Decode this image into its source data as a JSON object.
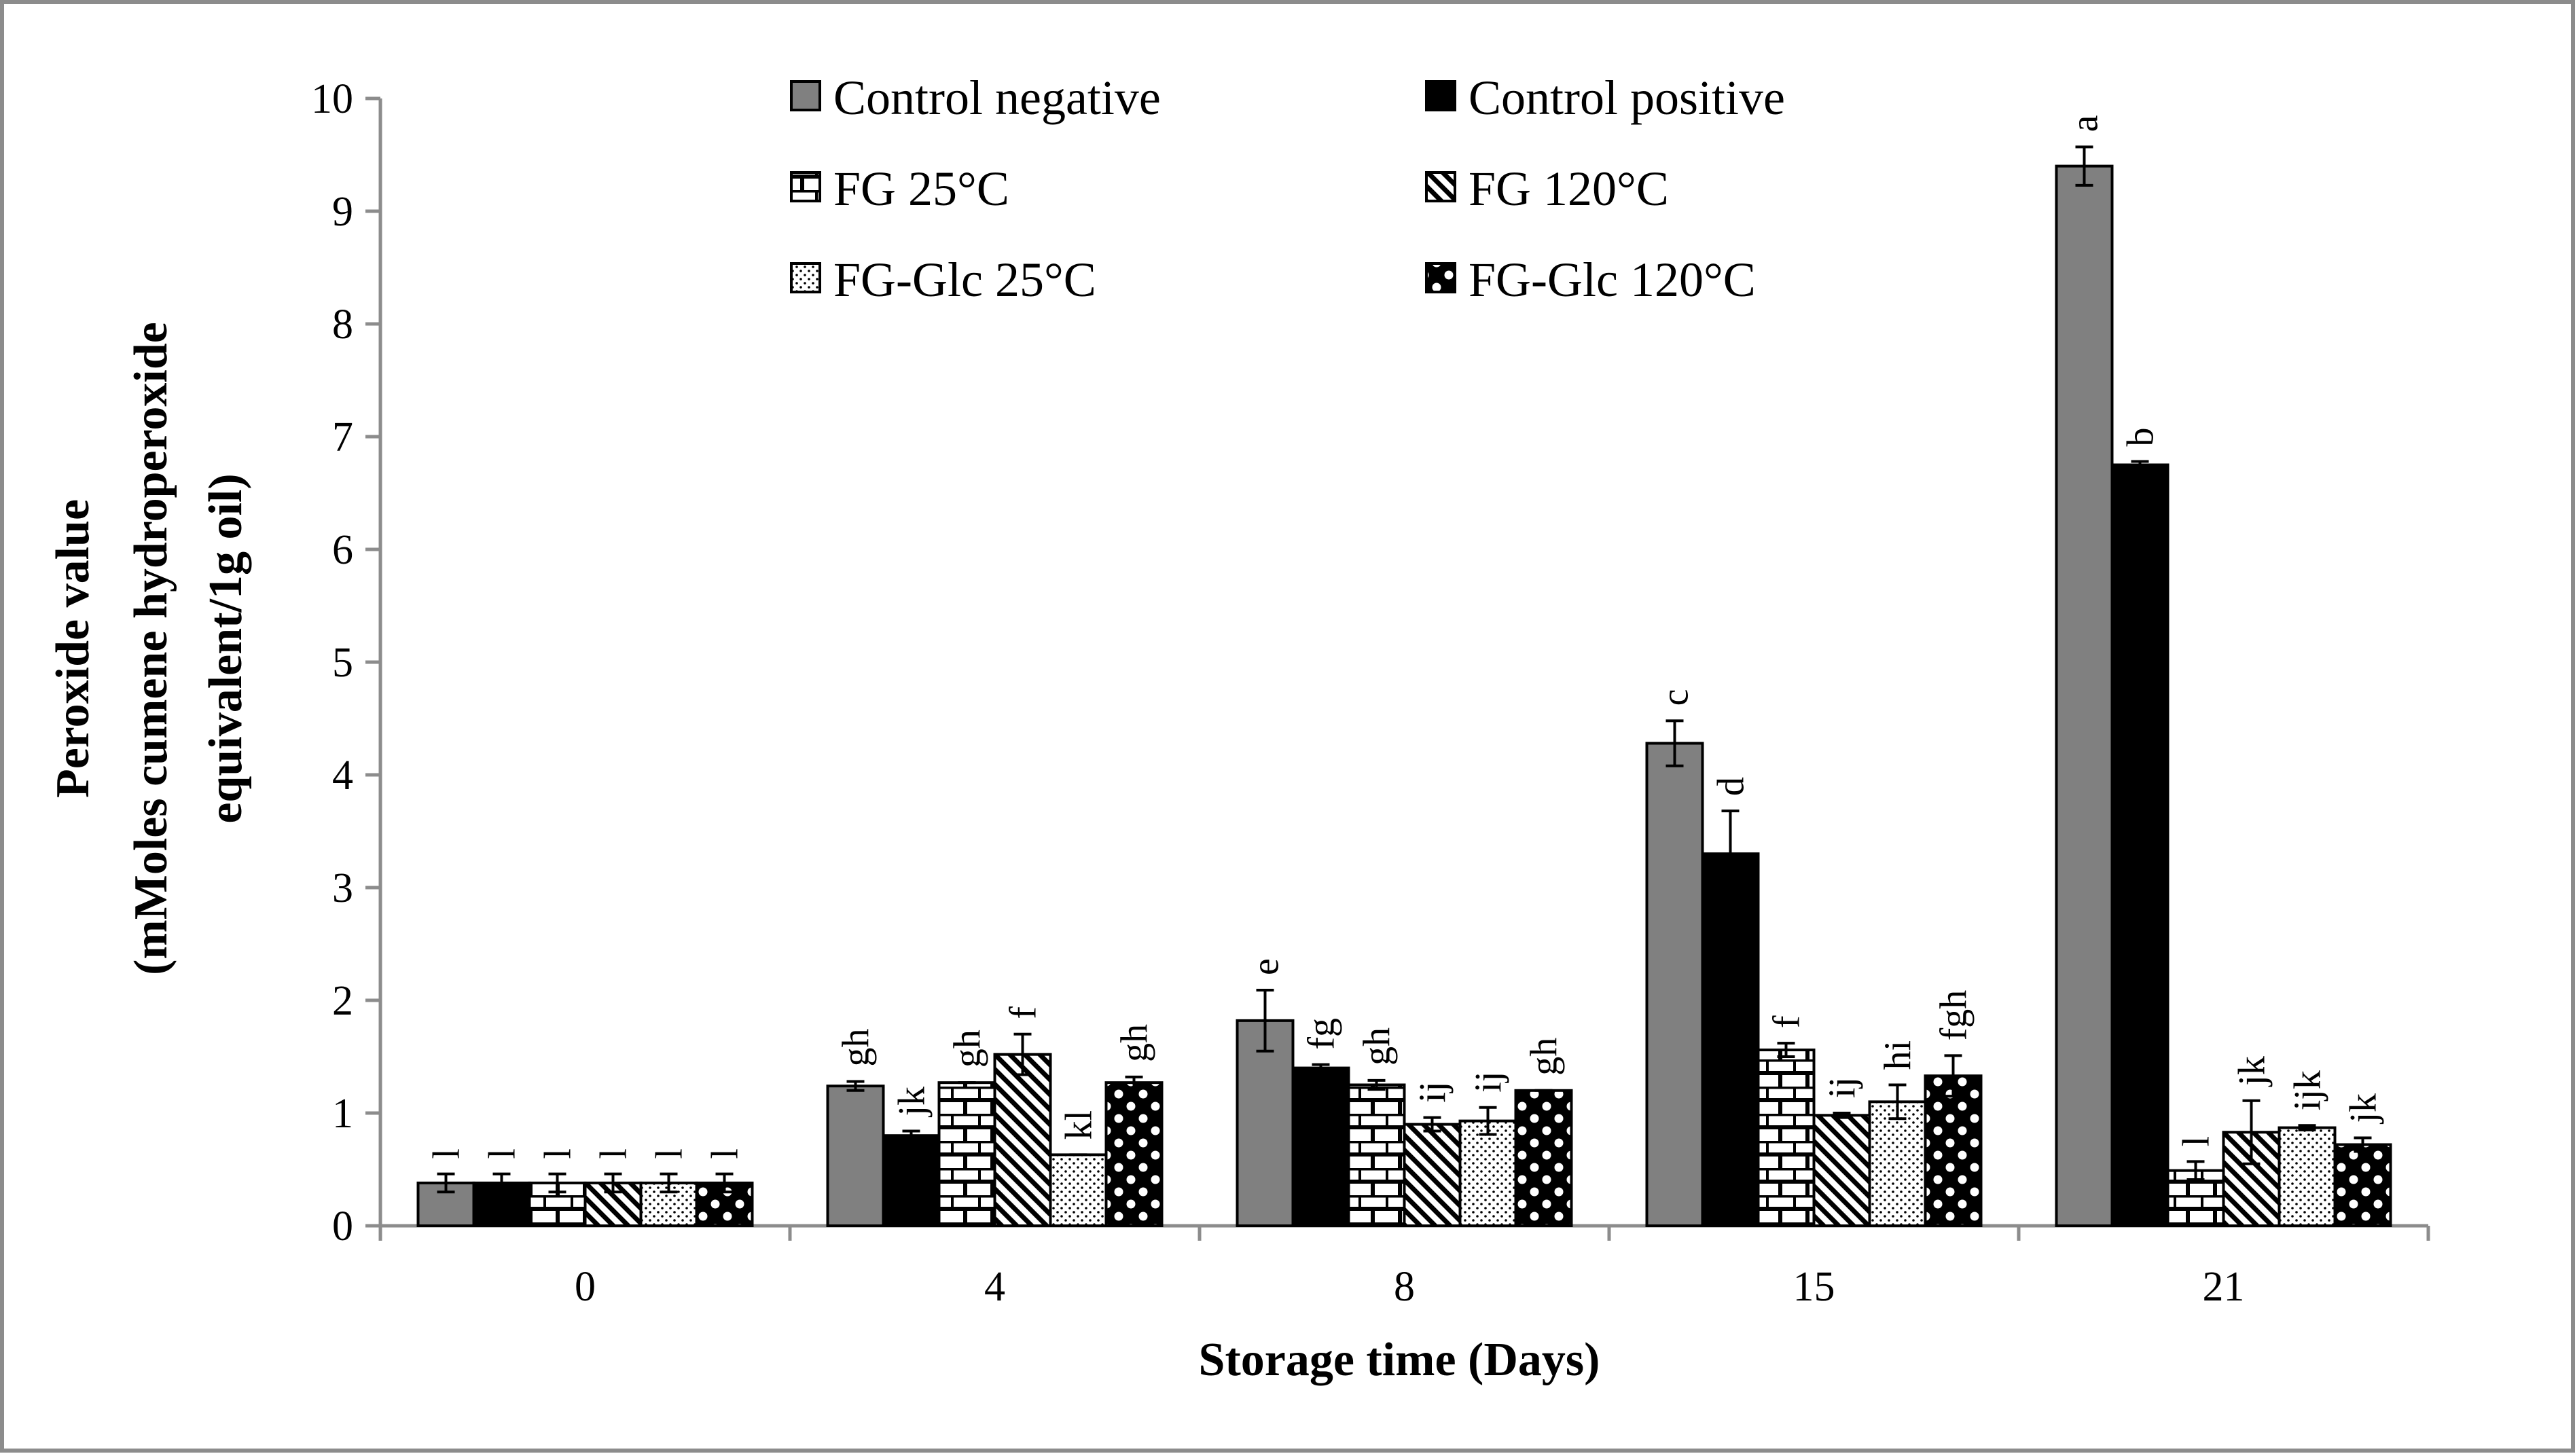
{
  "chart_data": {
    "type": "bar",
    "title": "",
    "xlabel": "Storage time (Days)",
    "ylabel_lines": [
      "Peroxide value",
      "(mMoles cumene hydroperoxide",
      "equivalent/1g oil)"
    ],
    "ylim": [
      0,
      10
    ],
    "y_ticks": [
      "0",
      "1",
      "2",
      "3",
      "4",
      "5",
      "6",
      "7",
      "8",
      "9",
      "10"
    ],
    "categories": [
      "0",
      "4",
      "8",
      "15",
      "21"
    ],
    "series": [
      {
        "name": "Control negative",
        "pattern": "solid-gray",
        "color": "#7f7f7f",
        "values": [
          0.38,
          1.24,
          1.82,
          4.28,
          9.4
        ],
        "errors": [
          0.08,
          0.04,
          0.27,
          0.2,
          0.17
        ],
        "labels": [
          "l",
          "gh",
          "e",
          "c",
          "a"
        ]
      },
      {
        "name": "Control positive",
        "pattern": "solid-black",
        "color": "#000000",
        "values": [
          0.38,
          0.8,
          1.4,
          3.3,
          6.75
        ],
        "errors": [
          0.08,
          0.04,
          0.03,
          0.38,
          0.03
        ],
        "labels": [
          "l",
          "jk",
          "fg",
          "d",
          "b"
        ]
      },
      {
        "name": "FG 25°C",
        "pattern": "brick",
        "color": "#000000",
        "values": [
          0.38,
          1.27,
          1.25,
          1.56,
          0.49
        ],
        "errors": [
          0.08,
          0.0,
          0.04,
          0.06,
          0.08
        ],
        "labels": [
          "l",
          "gh",
          "gh",
          "f",
          "l"
        ]
      },
      {
        "name": "FG 120°C",
        "pattern": "diagonal",
        "color": "#000000",
        "values": [
          0.38,
          1.52,
          0.9,
          0.98,
          0.83
        ],
        "errors": [
          0.08,
          0.18,
          0.06,
          0.02,
          0.28
        ],
        "labels": [
          "l",
          "f",
          "ij",
          "ij",
          "jk"
        ]
      },
      {
        "name": "FG-Glc 25°C",
        "pattern": "dots",
        "color": "#000000",
        "values": [
          0.38,
          0.63,
          0.93,
          1.1,
          0.87
        ],
        "errors": [
          0.08,
          0.0,
          0.12,
          0.15,
          0.02
        ],
        "labels": [
          "l",
          "kl",
          "ij",
          "hi",
          "ijk"
        ]
      },
      {
        "name": "FG-Glc 120°C",
        "pattern": "checker",
        "color": "#000000",
        "values": [
          0.38,
          1.27,
          1.2,
          1.33,
          0.72
        ],
        "errors": [
          0.08,
          0.05,
          0.0,
          0.18,
          0.06
        ],
        "labels": [
          "l",
          "gh",
          "gh",
          "fgh",
          "jk"
        ]
      }
    ],
    "legend_position": "top-center, three rows of two",
    "grid": false
  }
}
